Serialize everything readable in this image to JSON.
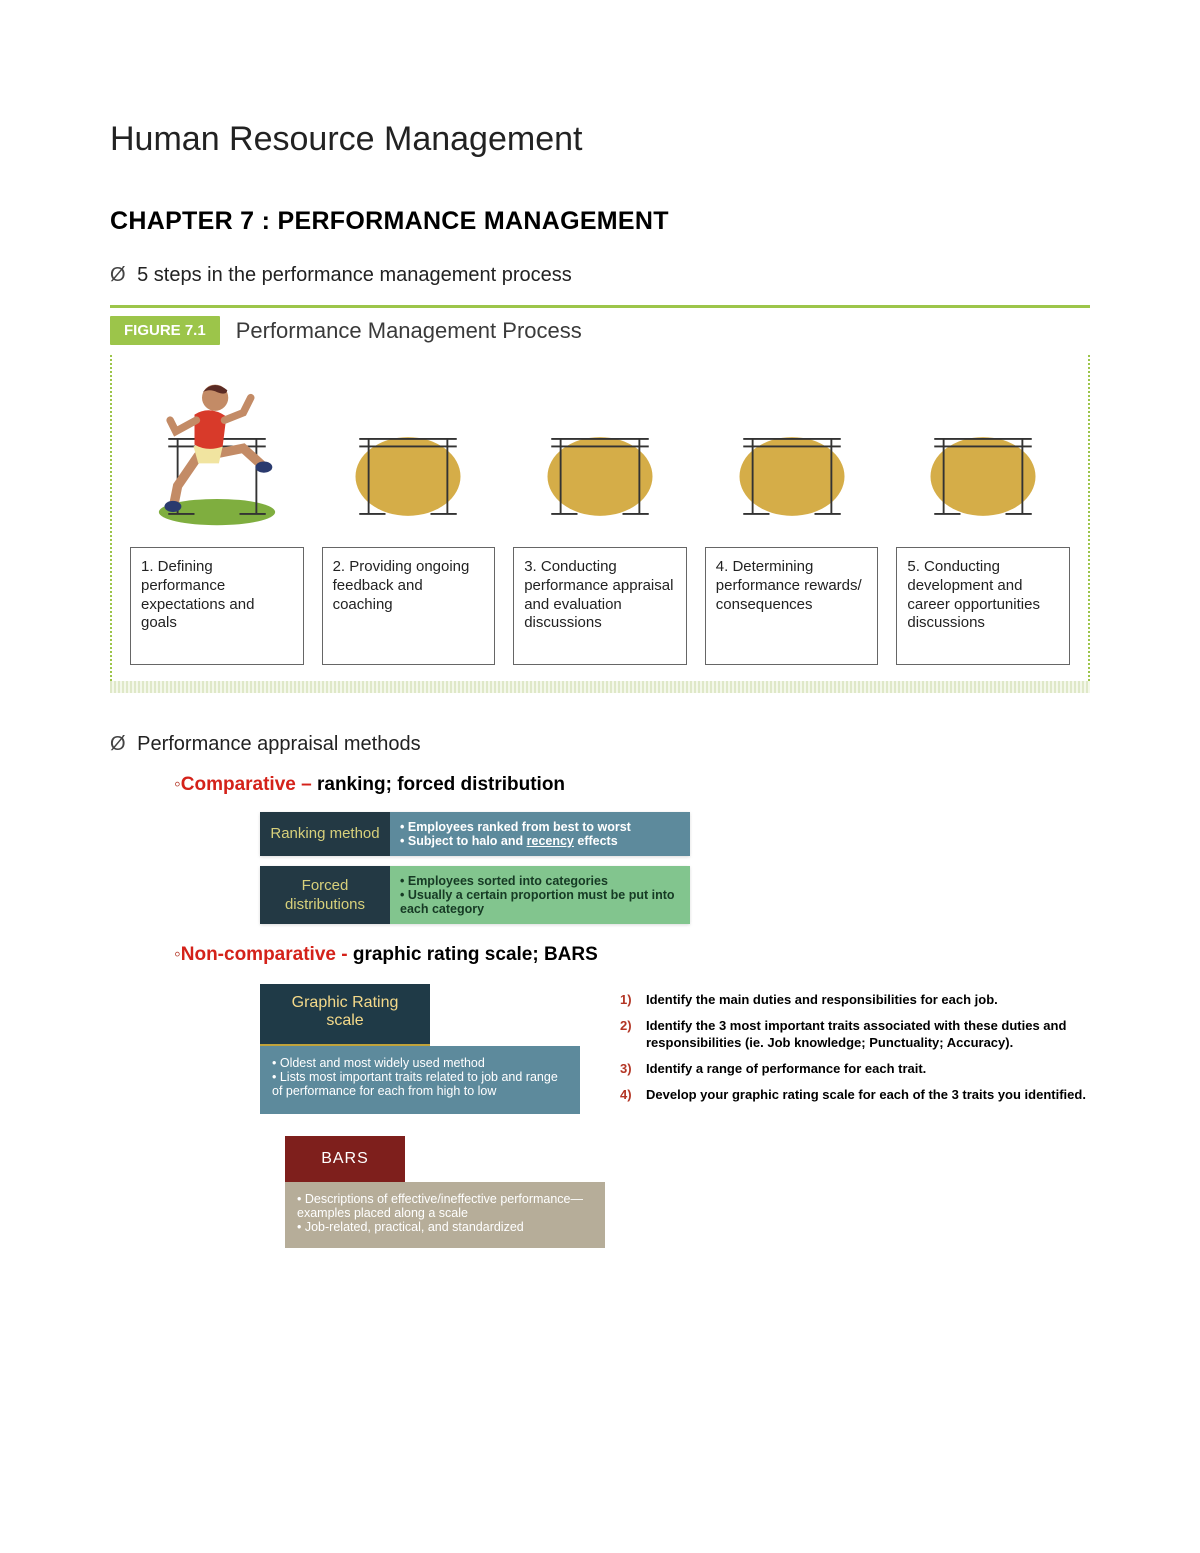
{
  "page_title": "Human Resource Management",
  "chapter_title": "CHAPTER 7 : PERFORMANCE MANAGEMENT",
  "bullet_sym": "Ø",
  "intro_bullet": "5 steps in the performance management process",
  "figure": {
    "tag": "FIGURE 7.1",
    "title": "Performance Management Process",
    "accent_color": "#9cc54a",
    "runner": {
      "skin": "#c38b66",
      "shirt": "#d83a2a",
      "shorts": "#f1e4a0",
      "shoe": "#2a3a6e",
      "grass": "#7fae3f",
      "hair": "#5a2b24"
    },
    "hurdle": {
      "blob": "#d3a93e",
      "stroke": "#333333"
    },
    "steps": [
      "1. Defining performance expectations and goals",
      "2. Providing ongoing feedback and coaching",
      "3. Conducting performance appraisal and evaluation discussions",
      "4. Determining performance rewards/ consequences",
      "5. Conducting development and career opportunities discussions"
    ]
  },
  "appraisal_heading": "Performance appraisal methods",
  "comparative": {
    "label": "Comparative",
    "dash": " – ",
    "text": "ranking; forced distribution",
    "highlight_color": "#d4221a",
    "cards": [
      {
        "label": "Ranking method",
        "label_bg": "#233944",
        "label_fg": "#d7d07b",
        "body_bg": "#5d8a9c",
        "points": [
          "Employees ranked from best to worst",
          "Subject to halo and <u>recency</u> effects"
        ]
      },
      {
        "label": "Forced distributions",
        "label_bg": "#233944",
        "label_fg": "#d7d07b",
        "body_bg": "#82c58e",
        "body_fg": "#163a24",
        "points": [
          "Employees sorted into categories",
          "Usually a certain proportion must be put into each category"
        ]
      }
    ]
  },
  "noncomparative": {
    "label": "Non-comparative",
    "dash": " - ",
    "text": "graphic rating scale; BARS",
    "highlight_color": "#d4221a",
    "grs": {
      "title": "Graphic Rating scale",
      "head_bg": "#1f3a47",
      "head_fg": "#f4d98a",
      "body_bg": "#5d8a9c",
      "points": [
        "Oldest and most widely used method",
        "Lists most important traits related to job and range of performance for each from high to low"
      ]
    },
    "grs_steps": [
      "Identify the main duties and responsibilities for each job.",
      "Identify the 3 most important traits associated with these duties and responsibilities (ie. Job knowledge; Punctuality; Accuracy).",
      "Identify a range of performance for each trait.",
      "Develop your graphic rating scale for each of the 3 traits you identified."
    ],
    "bars": {
      "title": "BARS",
      "head_bg": "#7e1f1c",
      "body_bg": "#b6ad99",
      "points": [
        "Descriptions of effective/ineffective performance—examples placed along a scale",
        "Job-related, practical, and standardized"
      ]
    }
  }
}
